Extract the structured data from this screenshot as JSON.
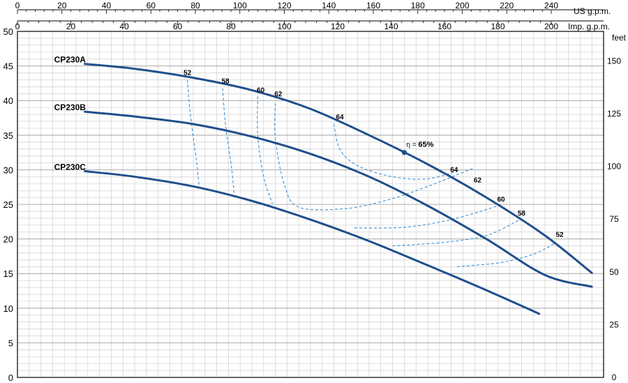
{
  "chart_data": {
    "type": "line",
    "x_top_label": "US g.p.m.",
    "x_top_ticks": [
      "0",
      "20",
      "40",
      "60",
      "80",
      "100",
      "120",
      "140",
      "160",
      "180",
      "200",
      "220",
      "240"
    ],
    "x_imp_label": "Imp. g.p.m.",
    "x_imp_ticks": [
      "0",
      "20",
      "40",
      "60",
      "80",
      "100",
      "120",
      "140",
      "160",
      "180",
      "200"
    ],
    "y_left_ticks": [
      "0",
      "5",
      "10",
      "15",
      "20",
      "25",
      "30",
      "35",
      "40",
      "45",
      "50"
    ],
    "y_right_label": "feet",
    "y_right_ticks": [
      "0",
      "25",
      "50",
      "75",
      "100",
      "125",
      "150"
    ],
    "xlim": [
      0,
      200
    ],
    "ylim": [
      0,
      50
    ],
    "grid": true,
    "series": [
      {
        "name": "CP230A",
        "points": [
          [
            23,
            45.3
          ],
          [
            40,
            44.6
          ],
          [
            60,
            43.3
          ],
          [
            80,
            41.5
          ],
          [
            100,
            38.8
          ],
          [
            120,
            35.0
          ],
          [
            140,
            30.8
          ],
          [
            160,
            26.0
          ],
          [
            180,
            20.5
          ],
          [
            196,
            15.1
          ]
        ]
      },
      {
        "name": "CP230B",
        "points": [
          [
            23,
            38.4
          ],
          [
            40,
            37.7
          ],
          [
            60,
            36.6
          ],
          [
            80,
            34.8
          ],
          [
            100,
            32.3
          ],
          [
            120,
            29.0
          ],
          [
            140,
            24.8
          ],
          [
            160,
            20.0
          ],
          [
            180,
            14.8
          ],
          [
            196,
            13.1
          ]
        ]
      },
      {
        "name": "CP230C",
        "points": [
          [
            23,
            29.8
          ],
          [
            40,
            29.0
          ],
          [
            60,
            27.6
          ],
          [
            80,
            25.5
          ],
          [
            100,
            22.8
          ],
          [
            120,
            19.7
          ],
          [
            140,
            16.2
          ],
          [
            160,
            12.6
          ],
          [
            178,
            9.2
          ]
        ]
      }
    ],
    "efficiency_labels": [
      {
        "label": "52",
        "x": 58,
        "y": 43.7
      },
      {
        "label": "58",
        "x": 71,
        "y": 42.5
      },
      {
        "label": "60",
        "x": 83,
        "y": 41.2
      },
      {
        "label": "62",
        "x": 89,
        "y": 40.6
      },
      {
        "label": "64",
        "x": 110,
        "y": 37.3
      },
      {
        "label": "64",
        "x": 149,
        "y": 29.7
      },
      {
        "label": "62",
        "x": 157,
        "y": 28.2
      },
      {
        "label": "60",
        "x": 165,
        "y": 25.4
      },
      {
        "label": "58",
        "x": 172,
        "y": 23.4
      },
      {
        "label": "52",
        "x": 185,
        "y": 20.3
      }
    ],
    "efficiency_curves": [
      {
        "label": "52",
        "points": [
          [
            58,
            43.0
          ],
          [
            59,
            38.0
          ],
          [
            61,
            31.5
          ],
          [
            62,
            27.6
          ]
        ]
      },
      {
        "label": "58",
        "points": [
          [
            70,
            41.8
          ],
          [
            71,
            36.5
          ],
          [
            73,
            30.5
          ],
          [
            74,
            26.2
          ]
        ]
      },
      {
        "label": "60",
        "points": [
          [
            82,
            40.6
          ],
          [
            82,
            35.0
          ],
          [
            84,
            29.0
          ],
          [
            87,
            25.1
          ]
        ]
      },
      {
        "label": "62",
        "points": [
          [
            88,
            39.6
          ],
          [
            88,
            34.5
          ],
          [
            91,
            28.0
          ],
          [
            96,
            24.6
          ],
          [
            112,
            24.4
          ],
          [
            126,
            25.6
          ],
          [
            140,
            27.6
          ],
          [
            156,
            30.3
          ]
        ]
      },
      {
        "label": "64",
        "points": [
          [
            108,
            36.6
          ],
          [
            110,
            33.0
          ],
          [
            116,
            30.6
          ],
          [
            128,
            29.0
          ],
          [
            140,
            28.7
          ],
          [
            150,
            29.8
          ]
        ]
      },
      {
        "label": "60",
        "points": [
          [
            115,
            21.6
          ],
          [
            132,
            21.7
          ],
          [
            148,
            22.8
          ],
          [
            164,
            24.8
          ]
        ]
      },
      {
        "label": "58",
        "points": [
          [
            128,
            19.0
          ],
          [
            145,
            19.5
          ],
          [
            160,
            20.5
          ],
          [
            171,
            22.7
          ]
        ]
      },
      {
        "label": "52",
        "points": [
          [
            150,
            16.0
          ],
          [
            165,
            16.6
          ],
          [
            176,
            17.8
          ],
          [
            183,
            19.3
          ]
        ]
      }
    ],
    "best_efficiency_point": {
      "label": "65%",
      "eta_symbol": "η =",
      "x": 132,
      "y": 32.5
    }
  }
}
